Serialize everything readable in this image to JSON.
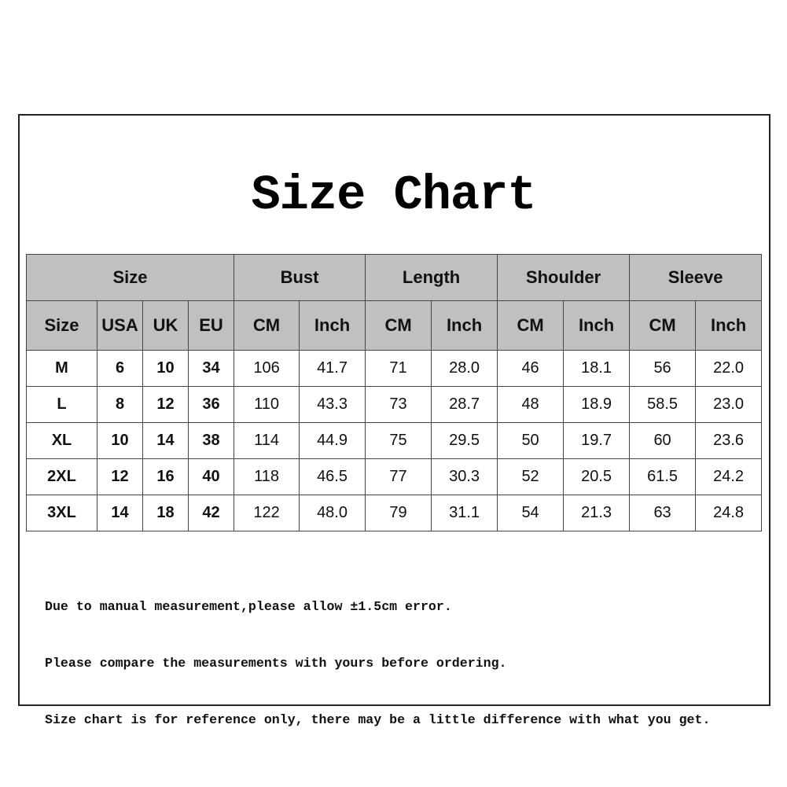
{
  "title": "Size Chart",
  "groups": [
    "Size",
    "Bust",
    "Length",
    "Shoulder",
    "Sleeve"
  ],
  "subheaders": [
    "Size",
    "USA",
    "UK",
    "EU",
    "CM",
    "Inch",
    "CM",
    "Inch",
    "CM",
    "Inch",
    "CM",
    "Inch"
  ],
  "rows": [
    [
      "M",
      "6",
      "10",
      "34",
      "106",
      "41.7",
      "71",
      "28.0",
      "46",
      "18.1",
      "56",
      "22.0"
    ],
    [
      "L",
      "8",
      "12",
      "36",
      "110",
      "43.3",
      "73",
      "28.7",
      "48",
      "18.9",
      "58.5",
      "23.0"
    ],
    [
      "XL",
      "10",
      "14",
      "38",
      "114",
      "44.9",
      "75",
      "29.5",
      "50",
      "19.7",
      "60",
      "23.6"
    ],
    [
      "2XL",
      "12",
      "16",
      "40",
      "118",
      "46.5",
      "77",
      "30.3",
      "52",
      "20.5",
      "61.5",
      "24.2"
    ],
    [
      "3XL",
      "14",
      "18",
      "42",
      "122",
      "48.0",
      "79",
      "31.1",
      "54",
      "21.3",
      "63",
      "24.8"
    ]
  ],
  "notes": [
    "Due to manual measurement,please allow ±1.5cm error.",
    "Please compare the measurements with yours before ordering.",
    "Size chart is for reference only, there may be a little difference with what you get."
  ],
  "colors": {
    "header_bg": "#c0c0c0",
    "border": "#444444"
  }
}
